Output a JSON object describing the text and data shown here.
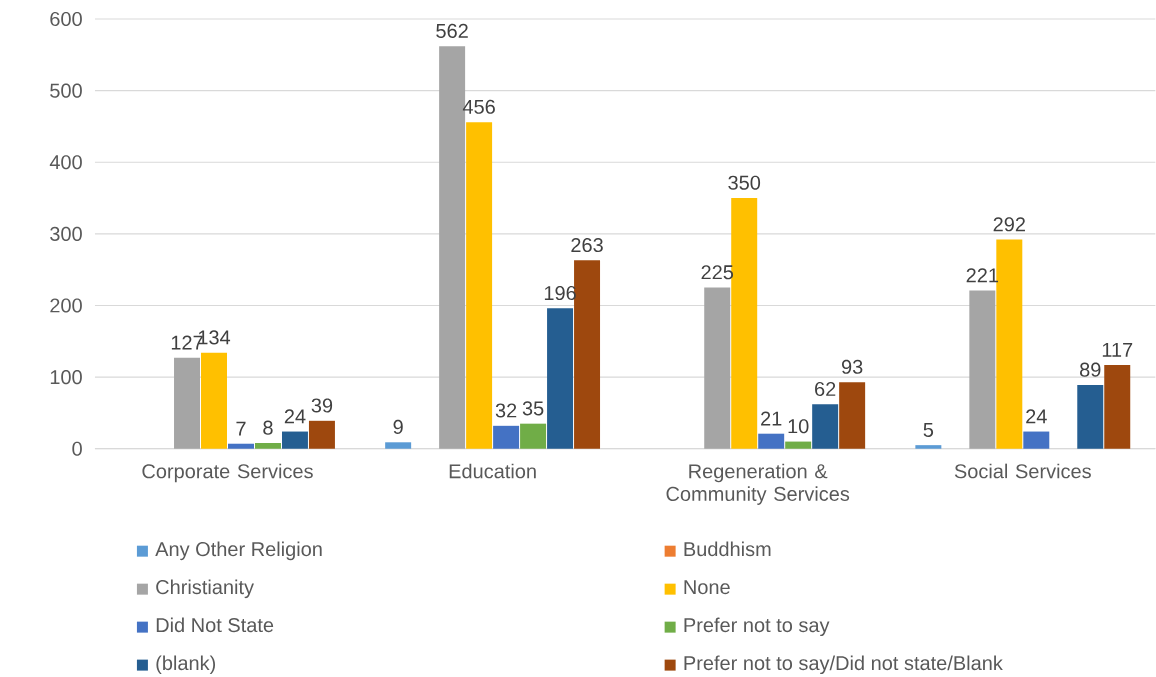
{
  "chart_data": {
    "type": "bar",
    "categories": [
      "Corporate Services",
      "Education",
      "Regeneration & Community Services",
      "Social Services"
    ],
    "series": [
      {
        "name": "Any Other Religion",
        "color": "#5b9bd5",
        "values": [
          null,
          9,
          null,
          5
        ]
      },
      {
        "name": "Buddhism",
        "color": "#ed7d31",
        "values": [
          null,
          null,
          null,
          null
        ]
      },
      {
        "name": "Christianity",
        "color": "#a5a5a5",
        "values": [
          127,
          562,
          225,
          221
        ]
      },
      {
        "name": "None",
        "color": "#ffc000",
        "values": [
          134,
          456,
          350,
          292
        ]
      },
      {
        "name": "Did Not State",
        "color": "#4472c4",
        "values": [
          7,
          32,
          21,
          24
        ]
      },
      {
        "name": "Prefer not to say",
        "color": "#70ad47",
        "values": [
          8,
          35,
          10,
          null
        ]
      },
      {
        "name": "(blank)",
        "color": "#255e91",
        "values": [
          24,
          196,
          62,
          89
        ]
      },
      {
        "name": "Prefer not to say/Did not state/Blank",
        "color": "#9e480e",
        "values": [
          39,
          263,
          93,
          117
        ]
      }
    ],
    "ylim": [
      0,
      600
    ],
    "yticks": [
      0,
      100,
      200,
      300,
      400,
      500,
      600
    ],
    "grid": "y",
    "legend": "bottom",
    "data_labels": true
  }
}
